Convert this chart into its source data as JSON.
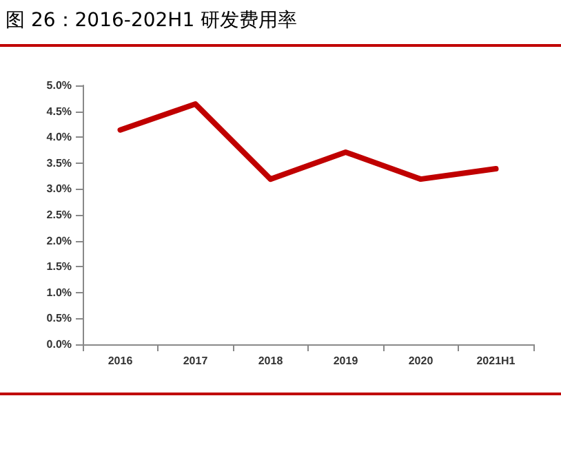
{
  "chart_data": {
    "type": "line",
    "title": "图 26：2016-202H1 研发费用率",
    "categories": [
      "2016",
      "2017",
      "2018",
      "2019",
      "2020",
      "2021H1"
    ],
    "series": [
      {
        "color": "#c00000",
        "values": [
          4.14,
          4.64,
          3.19,
          3.71,
          3.19,
          3.39
        ]
      }
    ],
    "ylim": [
      0,
      5
    ],
    "yticks": [
      {
        "value": 0,
        "label": "0.0%"
      },
      {
        "value": 0.5,
        "label": "0.5%"
      },
      {
        "value": 1,
        "label": "1.0%"
      },
      {
        "value": 1.5,
        "label": "1.5%"
      },
      {
        "value": 2,
        "label": "2.0%"
      },
      {
        "value": 2.5,
        "label": "2.5%"
      },
      {
        "value": 3,
        "label": "3.0%"
      },
      {
        "value": 3.5,
        "label": "3.5%"
      },
      {
        "value": 4,
        "label": "4.0%"
      },
      {
        "value": 4.5,
        "label": "4.5%"
      },
      {
        "value": 5,
        "label": "5.0%"
      }
    ],
    "grid": false,
    "marker": "none",
    "line_style": "solid"
  }
}
